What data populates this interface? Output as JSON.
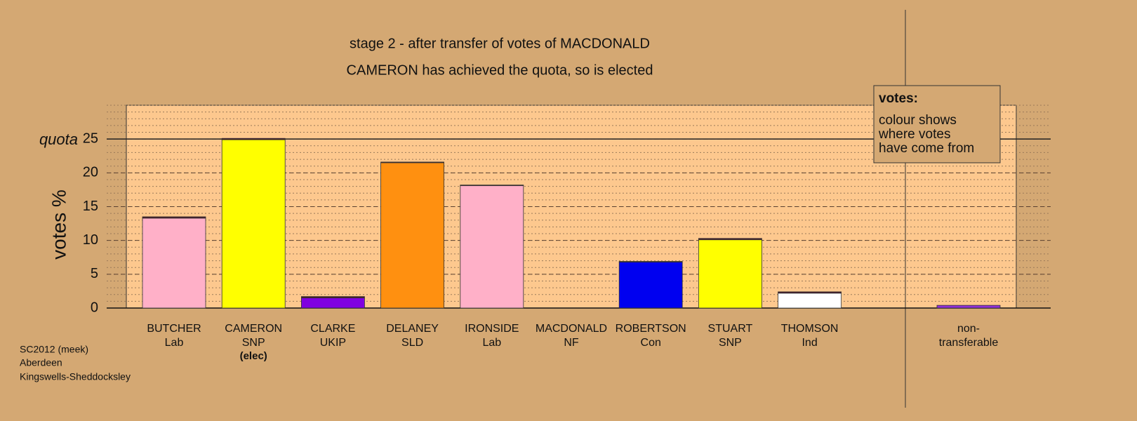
{
  "chart_data": {
    "type": "bar",
    "title": "stage 2 - after transfer of votes of MACDONALD",
    "subtitle": "CAMERON has achieved the quota, so is elected",
    "y_label": "votes %",
    "categories": [
      "BUTCHER",
      "CAMERON",
      "CLARKE",
      "DELANEY",
      "IRONSIDE",
      "MACDONALD",
      "ROBERTSON",
      "STUART",
      "THOMSON",
      null,
      "non-"
    ],
    "parties": [
      "Lab",
      "SNP",
      "UKIP",
      "SLD",
      "Lab",
      "NF",
      "Con",
      "SNP",
      "Ind",
      null,
      "transferable"
    ],
    "notes": [
      null,
      "(elec)",
      null,
      null,
      null,
      null,
      null,
      null,
      null,
      null,
      null
    ],
    "series": [
      {
        "colors": [
          "#ffb0c8",
          "#ffff00",
          "#8000e0",
          "#ff9010",
          "#ffb0c8",
          "#4a1a2a",
          "#0000f0",
          "#ffff00",
          "#ffffff",
          null,
          "#9030d8"
        ],
        "values": [
          13.3,
          24.9,
          1.5,
          21.5,
          18.1,
          0,
          6.8,
          10.1,
          2.2,
          null,
          0.4
        ]
      },
      {
        "color": "#4a1a2a",
        "values": [
          0.2,
          0.2,
          0.2,
          0.1,
          0.1,
          0,
          0.1,
          0.2,
          0.2,
          null,
          0
        ]
      }
    ],
    "ylim": [
      0,
      30
    ],
    "yticks": [
      0,
      5,
      10,
      15,
      20,
      25
    ],
    "minor_step": 1,
    "quota": {
      "value": 25,
      "label": "quota"
    },
    "grid": true,
    "legend": {
      "title": "votes:",
      "lines": [
        "colour shows",
        "where votes",
        "have come from"
      ]
    },
    "footer": [
      "SC2012 (meek)",
      "Aberdeen",
      "Kingswells-Sheddocksley"
    ]
  }
}
